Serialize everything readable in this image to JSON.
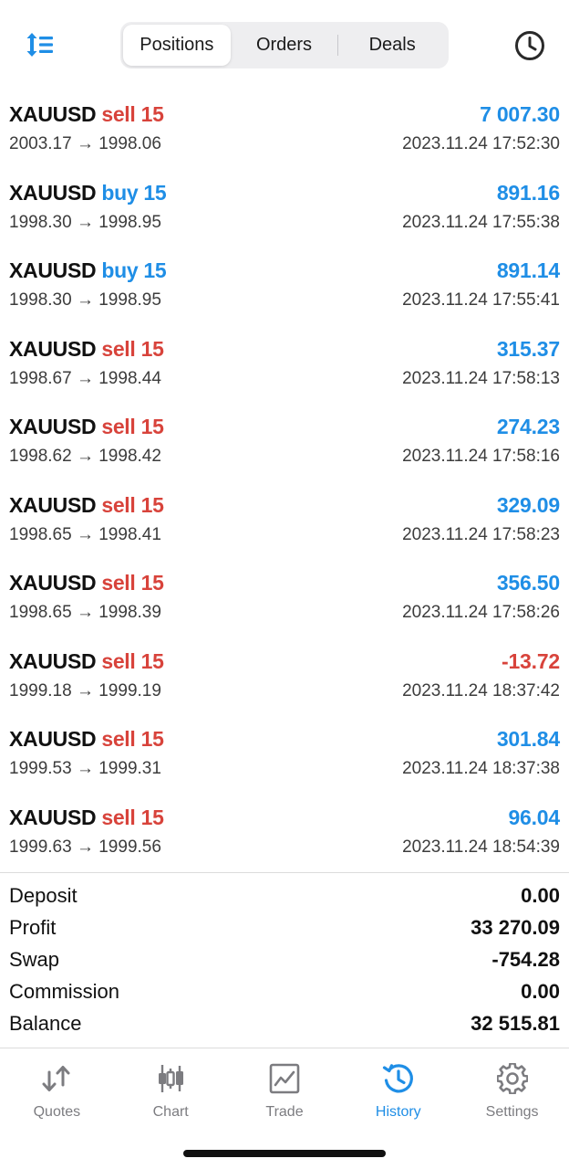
{
  "header": {
    "sort_icon": "sort-icon",
    "history_icon": "clock-icon",
    "tabs": [
      {
        "label": "Positions",
        "active": true
      },
      {
        "label": "Orders",
        "active": false
      },
      {
        "label": "Deals",
        "active": false
      }
    ]
  },
  "colors": {
    "accent": "#1f8ee6",
    "sell": "#d8433b",
    "buy": "#1f8ee6"
  },
  "positions": [
    {
      "symbol": "XAUUSD",
      "side": "sell 15",
      "type": "sell",
      "profit": "7 007.30",
      "sign": "pos",
      "prices": "2003.17 → 1998.06",
      "time": "2023.11.24 17:52:30"
    },
    {
      "symbol": "XAUUSD",
      "side": "buy 15",
      "type": "buy",
      "profit": "891.16",
      "sign": "pos",
      "prices": "1998.30 → 1998.95",
      "time": "2023.11.24 17:55:38"
    },
    {
      "symbol": "XAUUSD",
      "side": "buy 15",
      "type": "buy",
      "profit": "891.14",
      "sign": "pos",
      "prices": "1998.30 → 1998.95",
      "time": "2023.11.24 17:55:41"
    },
    {
      "symbol": "XAUUSD",
      "side": "sell 15",
      "type": "sell",
      "profit": "315.37",
      "sign": "pos",
      "prices": "1998.67 → 1998.44",
      "time": "2023.11.24 17:58:13"
    },
    {
      "symbol": "XAUUSD",
      "side": "sell 15",
      "type": "sell",
      "profit": "274.23",
      "sign": "pos",
      "prices": "1998.62 → 1998.42",
      "time": "2023.11.24 17:58:16"
    },
    {
      "symbol": "XAUUSD",
      "side": "sell 15",
      "type": "sell",
      "profit": "329.09",
      "sign": "pos",
      "prices": "1998.65 → 1998.41",
      "time": "2023.11.24 17:58:23"
    },
    {
      "symbol": "XAUUSD",
      "side": "sell 15",
      "type": "sell",
      "profit": "356.50",
      "sign": "pos",
      "prices": "1998.65 → 1998.39",
      "time": "2023.11.24 17:58:26"
    },
    {
      "symbol": "XAUUSD",
      "side": "sell 15",
      "type": "sell",
      "profit": "-13.72",
      "sign": "neg",
      "prices": "1999.18 → 1999.19",
      "time": "2023.11.24 18:37:42"
    },
    {
      "symbol": "XAUUSD",
      "side": "sell 15",
      "type": "sell",
      "profit": "301.84",
      "sign": "pos",
      "prices": "1999.53 → 1999.31",
      "time": "2023.11.24 18:37:38"
    },
    {
      "symbol": "XAUUSD",
      "side": "sell 15",
      "type": "sell",
      "profit": "96.04",
      "sign": "pos",
      "prices": "1999.63 → 1999.56",
      "time": "2023.11.24 18:54:39"
    }
  ],
  "summary": [
    {
      "label": "Deposit",
      "value": "0.00"
    },
    {
      "label": "Profit",
      "value": "33 270.09"
    },
    {
      "label": "Swap",
      "value": "-754.28"
    },
    {
      "label": "Commission",
      "value": "0.00"
    },
    {
      "label": "Balance",
      "value": "32 515.81"
    }
  ],
  "tabbar": [
    {
      "label": "Quotes",
      "icon": "quotes-icon",
      "active": false
    },
    {
      "label": "Chart",
      "icon": "chart-icon",
      "active": false
    },
    {
      "label": "Trade",
      "icon": "trade-icon",
      "active": false
    },
    {
      "label": "History",
      "icon": "history-icon",
      "active": true
    },
    {
      "label": "Settings",
      "icon": "settings-icon",
      "active": false
    }
  ]
}
